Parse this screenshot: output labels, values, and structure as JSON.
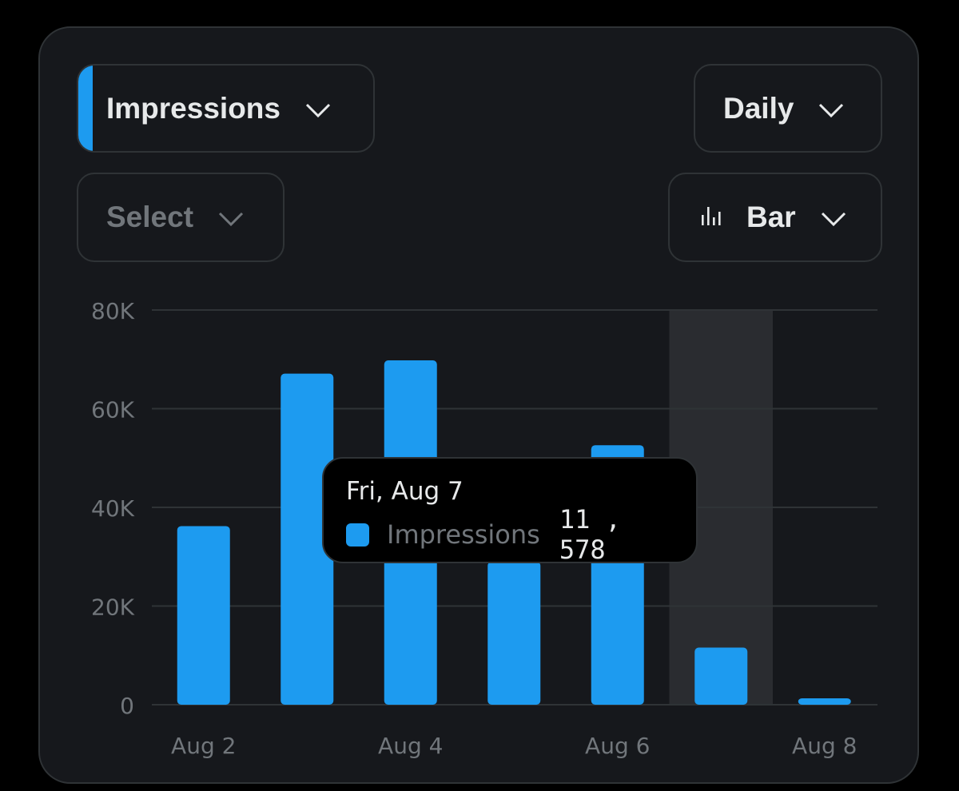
{
  "controls": {
    "metric": "Impressions",
    "period": "Daily",
    "compare": "Select",
    "chart_type": "Bar"
  },
  "icons": {
    "dropdown": "chevron-down-icon",
    "chart_type": "bar-chart-icon"
  },
  "colors": {
    "accent": "#1d9bf0",
    "background": "#16181c",
    "highlight": "#2a2c30",
    "grid": "#2f3336",
    "muted_text": "#71767b"
  },
  "tooltip": {
    "date": "Fri, Aug 7",
    "series": "Impressions",
    "value": "11 , 578"
  },
  "chart_data": {
    "type": "bar",
    "categories": [
      "Aug 2",
      "Aug 3",
      "Aug 4",
      "Aug 5",
      "Aug 6",
      "Aug 7",
      "Aug 8"
    ],
    "x_tick_labels": [
      "Aug 2",
      "",
      "Aug 4",
      "",
      "Aug 6",
      "",
      "Aug 8"
    ],
    "series": [
      {
        "name": "Impressions",
        "values": [
          36200,
          67100,
          69800,
          29000,
          52600,
          11578,
          1300
        ]
      }
    ],
    "y_ticks": [
      0,
      20000,
      40000,
      60000,
      80000
    ],
    "y_tick_labels": [
      "0",
      "20K",
      "40K",
      "60K",
      "80K"
    ],
    "ylim": [
      0,
      80000
    ],
    "grid": true,
    "highlighted_category": "Aug 7",
    "title": "",
    "xlabel": "",
    "ylabel": ""
  }
}
